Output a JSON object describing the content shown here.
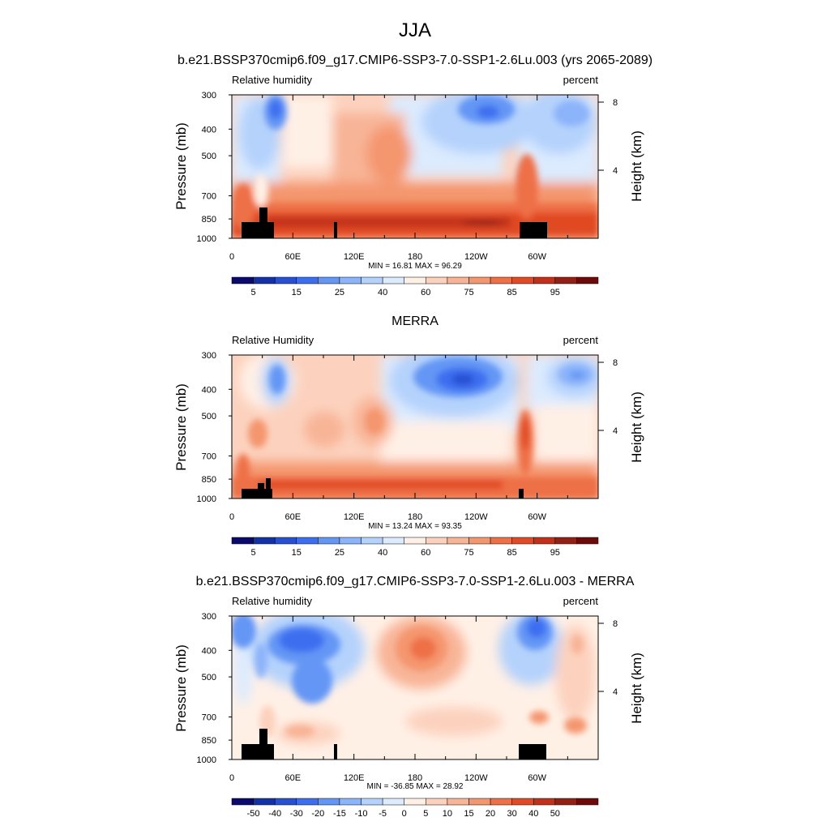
{
  "figure": {
    "title": "JJA"
  },
  "colors": {
    "levels_rh": [
      "#0a0a6e",
      "#1432a8",
      "#2850d2",
      "#3c6ef0",
      "#6496f5",
      "#8cb4fa",
      "#b4d2fc",
      "#dcebfe",
      "#fff0e6",
      "#fcd2be",
      "#f8b496",
      "#f4966e",
      "#ee7046",
      "#e04a24",
      "#c2301a",
      "#922014",
      "#6e0a0a"
    ],
    "levels_diff": [
      "#0a0a6e",
      "#1432a8",
      "#2850d2",
      "#3c6ef0",
      "#6496f5",
      "#8cb4fa",
      "#b4d2fc",
      "#dcebfe",
      "#fff0e6",
      "#fcd2be",
      "#f8b496",
      "#f4966e",
      "#ee7046",
      "#e04a24",
      "#c2301a",
      "#922014",
      "#6e0a0a"
    ]
  },
  "panels": [
    {
      "title": "b.e21.BSSP370cmip6.f09_g17.CMIP6-SSP3-7.0-SSP1-2.6Lu.003 (yrs 2065-2089)",
      "left_label": "Relative humidity",
      "right_label": "percent",
      "ylabel": "Pressure (mb)",
      "ylabel_right": "Height (km)",
      "minmax": "MIN = 16.81  MAX = 96.29",
      "colorbar_labels": [
        "5",
        "15",
        "25",
        "40",
        "60",
        "75",
        "85",
        "95"
      ]
    },
    {
      "title": "MERRA",
      "left_label": "Relative Humidity",
      "right_label": "percent",
      "ylabel": "Pressure (mb)",
      "ylabel_right": "Height (km)",
      "minmax": "MIN = 13.24  MAX = 93.35",
      "colorbar_labels": [
        "5",
        "15",
        "25",
        "40",
        "60",
        "75",
        "85",
        "95"
      ]
    },
    {
      "title": "b.e21.BSSP370cmip6.f09_g17.CMIP6-SSP3-7.0-SSP1-2.6Lu.003 - MERRA",
      "left_label": "Relative humidity",
      "right_label": "percent",
      "ylabel": "Pressure (mb)",
      "ylabel_right": "Height (km)",
      "minmax": "MIN = -36.85  MAX = 28.92",
      "colorbar_labels": [
        "-50",
        "-40",
        "-30",
        "-20",
        "-15",
        "-10",
        "-5",
        "0",
        "5",
        "10",
        "15",
        "20",
        "30",
        "40",
        "50"
      ]
    }
  ],
  "chart_data": [
    {
      "type": "heatmap",
      "title": "b.e21.BSSP370cmip6.f09_g17.CMIP6-SSP3-7.0-SSP1-2.6Lu.003 (yrs 2065-2089)",
      "variable": "Relative humidity",
      "units": "percent",
      "x_tick_labels": [
        "0",
        "60E",
        "120E",
        "180",
        "120W",
        "60W"
      ],
      "x_range": [
        0,
        360
      ],
      "y_tick_labels": [
        "300",
        "400",
        "500",
        "700",
        "850",
        "1000"
      ],
      "ylim": [
        1000,
        300
      ],
      "y_right_tick_labels": [
        "8",
        "4"
      ],
      "min": 16.81,
      "max": 96.29,
      "contour_levels": [
        5,
        10,
        15,
        20,
        25,
        30,
        40,
        50,
        60,
        65,
        70,
        75,
        80,
        85,
        90,
        95
      ]
    },
    {
      "type": "heatmap",
      "title": "MERRA",
      "variable": "Relative Humidity",
      "units": "percent",
      "x_tick_labels": [
        "0",
        "60E",
        "120E",
        "180",
        "120W",
        "60W"
      ],
      "x_range": [
        0,
        360
      ],
      "y_tick_labels": [
        "300",
        "400",
        "500",
        "700",
        "850",
        "1000"
      ],
      "ylim": [
        1000,
        300
      ],
      "y_right_tick_labels": [
        "8",
        "4"
      ],
      "min": 13.24,
      "max": 93.35,
      "contour_levels": [
        5,
        10,
        15,
        20,
        25,
        30,
        40,
        50,
        60,
        65,
        70,
        75,
        80,
        85,
        90,
        95
      ]
    },
    {
      "type": "heatmap",
      "title": "b.e21.BSSP370cmip6.f09_g17.CMIP6-SSP3-7.0-SSP1-2.6Lu.003 - MERRA",
      "variable": "Relative humidity",
      "units": "percent",
      "x_tick_labels": [
        "0",
        "60E",
        "120E",
        "180",
        "120W",
        "60W"
      ],
      "x_range": [
        0,
        360
      ],
      "y_tick_labels": [
        "300",
        "400",
        "500",
        "700",
        "850",
        "1000"
      ],
      "ylim": [
        1000,
        300
      ],
      "y_right_tick_labels": [
        "8",
        "4"
      ],
      "min": -36.85,
      "max": 28.92,
      "contour_levels": [
        -50,
        -40,
        -30,
        -20,
        -15,
        -10,
        -5,
        0,
        5,
        10,
        15,
        20,
        30,
        40,
        50
      ]
    }
  ]
}
